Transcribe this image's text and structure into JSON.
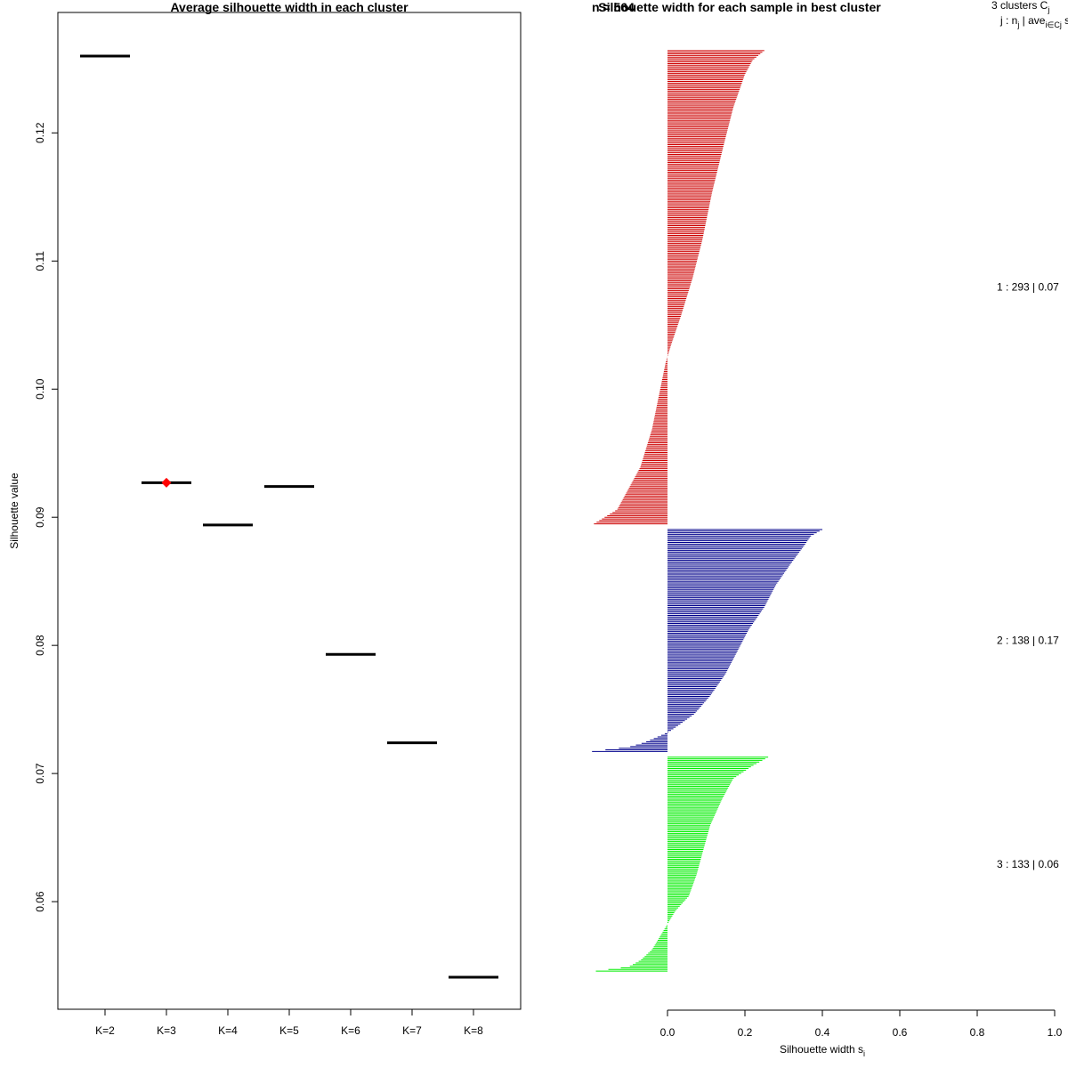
{
  "chart_data": [
    {
      "type": "dot-range",
      "title": "Average silhouette width in each cluster",
      "xlabel": "",
      "ylabel": "Silhouette value",
      "categories": [
        "K=2",
        "K=3",
        "K=4",
        "K=5",
        "K=6",
        "K=7",
        "K=8"
      ],
      "values": [
        0.126,
        0.0927,
        0.0894,
        0.0924,
        0.0793,
        0.0724,
        0.0541
      ],
      "best": "K=3",
      "best_value": 0.0927,
      "best_marker_color": "#ff0000",
      "ylim": [
        0.0516,
        0.1294
      ],
      "yticks": [
        0.06,
        0.07,
        0.08,
        0.09,
        0.1,
        0.11,
        0.12
      ],
      "ytick_labels": [
        "0.06",
        "0.07",
        "0.08",
        "0.09",
        "0.10",
        "0.11",
        "0.12"
      ]
    },
    {
      "type": "bar",
      "orientation": "horizontal",
      "title": "Silhouette width for each sample in best cluster",
      "overlap_text": "n = 564",
      "xlabel": "Silhouette width s",
      "xlabel_sub": "i",
      "xlim": [
        -0.2,
        1.0
      ],
      "xticks": [
        "0.0",
        "0.2",
        "0.4",
        "0.6",
        "0.8",
        "1.0"
      ],
      "legend_header": {
        "line1": "3 clusters C",
        "line1_sub": "j",
        "line2": "j : n",
        "line2_sub1": "j",
        "line2_mid": " | ave",
        "line2_sub2": "i∈Cj",
        "line2_end": " s"
      },
      "series": [
        {
          "name": "1",
          "n": 293,
          "label": "1 :  293  |  0.07",
          "color": "#cd0000",
          "shape": [
            [
              0,
              0.25
            ],
            [
              0.02,
              0.22
            ],
            [
              0.05,
              0.2
            ],
            [
              0.12,
              0.17
            ],
            [
              0.2,
              0.145
            ],
            [
              0.3,
              0.115
            ],
            [
              0.4,
              0.09
            ],
            [
              0.48,
              0.065
            ],
            [
              0.56,
              0.035
            ],
            [
              0.62,
              0.01
            ],
            [
              0.66,
              -0.005
            ],
            [
              0.72,
              -0.02
            ],
            [
              0.8,
              -0.04
            ],
            [
              0.88,
              -0.07
            ],
            [
              0.94,
              -0.11
            ],
            [
              0.97,
              -0.13
            ],
            [
              1,
              -0.19
            ]
          ]
        },
        {
          "name": "2",
          "n": 138,
          "label": "2 :  138  |  0.17",
          "color": "#00008b",
          "shape": [
            [
              0,
              0.4
            ],
            [
              0.03,
              0.37
            ],
            [
              0.08,
              0.35
            ],
            [
              0.15,
              0.32
            ],
            [
              0.25,
              0.28
            ],
            [
              0.35,
              0.25
            ],
            [
              0.45,
              0.21
            ],
            [
              0.55,
              0.18
            ],
            [
              0.65,
              0.15
            ],
            [
              0.75,
              0.11
            ],
            [
              0.83,
              0.07
            ],
            [
              0.88,
              0.03
            ],
            [
              0.91,
              0.005
            ],
            [
              0.93,
              -0.02
            ],
            [
              0.96,
              -0.06
            ],
            [
              0.98,
              -0.1
            ],
            [
              1,
              -0.195
            ]
          ]
        },
        {
          "name": "3",
          "n": 133,
          "label": "3 :  133  |  0.06",
          "color": "#00ee00",
          "shape": [
            [
              0,
              0.26
            ],
            [
              0.04,
              0.22
            ],
            [
              0.1,
              0.17
            ],
            [
              0.2,
              0.14
            ],
            [
              0.32,
              0.11
            ],
            [
              0.45,
              0.09
            ],
            [
              0.55,
              0.075
            ],
            [
              0.65,
              0.055
            ],
            [
              0.72,
              0.02
            ],
            [
              0.78,
              0.0
            ],
            [
              0.84,
              -0.02
            ],
            [
              0.9,
              -0.04
            ],
            [
              0.95,
              -0.07
            ],
            [
              0.98,
              -0.1
            ],
            [
              1,
              -0.185
            ]
          ]
        }
      ]
    }
  ]
}
